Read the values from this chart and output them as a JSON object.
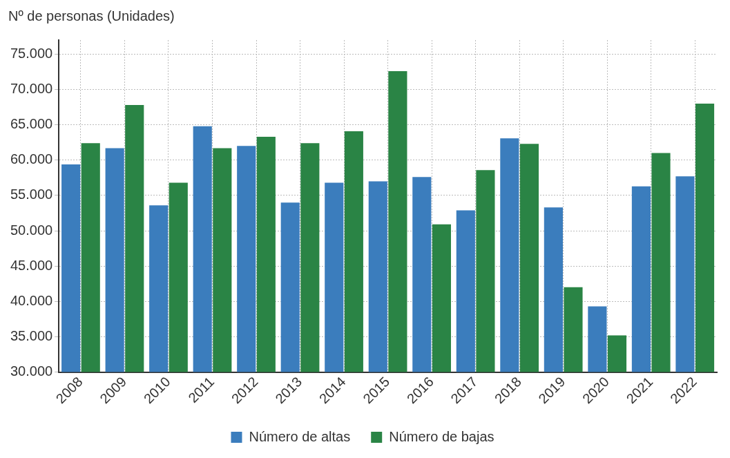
{
  "chart_data": {
    "type": "bar",
    "ylabel": "Nº de personas (Unidades)",
    "categories": [
      "2008",
      "2009",
      "2010",
      "2011",
      "2012",
      "2013",
      "2014",
      "2015",
      "2016",
      "2017",
      "2018",
      "2019",
      "2020",
      "2021",
      "2022"
    ],
    "series": [
      {
        "name": "Número de altas",
        "color": "#3b7dbd",
        "values": [
          59400,
          61700,
          53600,
          64800,
          62000,
          54000,
          56800,
          57000,
          57600,
          52900,
          63100,
          53300,
          39300,
          56300,
          57700
        ]
      },
      {
        "name": "Número de bajas",
        "color": "#2a8445",
        "values": [
          62400,
          67800,
          56800,
          61700,
          63300,
          62400,
          64100,
          72600,
          50900,
          58600,
          62300,
          42000,
          35200,
          61000,
          68000
        ]
      }
    ],
    "ylim": [
      30000,
      77000
    ],
    "yticks": [
      {
        "value": 30000,
        "label": "30.000"
      },
      {
        "value": 35000,
        "label": "35.000"
      },
      {
        "value": 40000,
        "label": "40.000"
      },
      {
        "value": 45000,
        "label": "45.000"
      },
      {
        "value": 50000,
        "label": "50.000"
      },
      {
        "value": 55000,
        "label": "55.000"
      },
      {
        "value": 60000,
        "label": "60.000"
      },
      {
        "value": 65000,
        "label": "65.000"
      },
      {
        "value": 70000,
        "label": "70.000"
      },
      {
        "value": 75000,
        "label": "75.000"
      }
    ],
    "grid": true,
    "legend": "bottom"
  }
}
